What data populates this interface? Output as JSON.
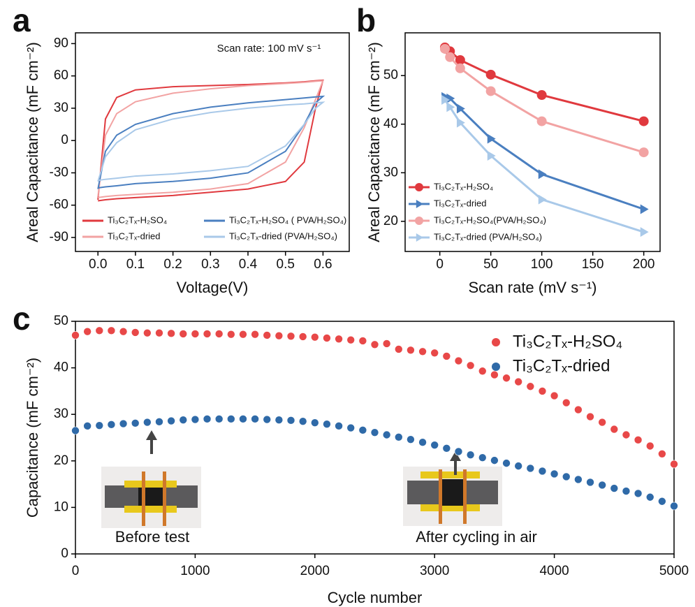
{
  "chart_data": [
    {
      "type": "line",
      "label": "a",
      "annotation": "Scan rate: 100 mV s⁻¹",
      "xlabel": "Voltage(V)",
      "ylabel": "Areal Capacitance (mF cm⁻²)",
      "x": [
        0,
        0.02,
        0.05,
        0.1,
        0.2,
        0.3,
        0.4,
        0.5,
        0.55,
        0.58,
        0.6,
        0.58,
        0.55,
        0.5,
        0.4,
        0.3,
        0.2,
        0.1,
        0.05,
        0.02,
        0
      ],
      "series": [
        {
          "name": "Ti₃C₂Tₓ-H₂SO₄",
          "color": "#e0393e",
          "values": [
            -55,
            20,
            40,
            47,
            50,
            51,
            52,
            53.5,
            54.5,
            55.5,
            56,
            30,
            -20,
            -38,
            -45,
            -48,
            -51,
            -53,
            -54,
            -55,
            -56
          ]
        },
        {
          "name": "Ti₃C₂Tₓ-dried",
          "color": "#f2a3a3",
          "values": [
            -52,
            5,
            25,
            36,
            44,
            48,
            51,
            53,
            54,
            55,
            55.5,
            38,
            12,
            -20,
            -40,
            -45,
            -48,
            -50,
            -51,
            -52,
            -53
          ]
        },
        {
          "name": "Ti₃C₂Tₓ-H₂SO₄ ( PVA/H₂SO₄)",
          "color": "#4a7fc0",
          "values": [
            -45,
            -10,
            5,
            15,
            25,
            31,
            35,
            38,
            39.5,
            40.5,
            41,
            35,
            15,
            -10,
            -30,
            -35,
            -38,
            -40,
            -42,
            -43,
            -44
          ]
        },
        {
          "name": "Ti₃C₂Tₓ-dried (PVA/H₂SO₄)",
          "color": "#a9c9e9",
          "values": [
            -38,
            -15,
            -2,
            10,
            20,
            26,
            30,
            33,
            34,
            35,
            35.5,
            30,
            15,
            -5,
            -24,
            -28,
            -31,
            -33,
            -35,
            -36,
            -37
          ]
        }
      ],
      "xlim": [
        -0.06,
        0.67
      ],
      "xticks": [
        {
          "value": 0,
          "label": "0.0"
        },
        0.1,
        0.2,
        0.3,
        0.4,
        0.5,
        0.6
      ],
      "ylim": [
        -103,
        100
      ],
      "yticks": [
        -90,
        -60,
        -30,
        0,
        30,
        60,
        90
      ],
      "legend": "lower center",
      "legend_columns": 2
    },
    {
      "type": "line",
      "label": "b",
      "xlabel": "Scan rate (mV s⁻¹)",
      "ylabel": "Areal Capacitance (mF cm⁻²)",
      "x": [
        5,
        10,
        20,
        50,
        100,
        200
      ],
      "series": [
        {
          "name": "Ti₃C₂Tₓ-H₂SO₄",
          "color": "#e0393e",
          "marker": "circle",
          "values": [
            55.8,
            55,
            53.2,
            50.2,
            46,
            40.6
          ]
        },
        {
          "name": "Ti₃C₂Tₓ-dried",
          "color": "#4a7fc0",
          "marker": "triangle",
          "values": [
            45.6,
            45.3,
            43.2,
            37,
            29.7,
            22.5
          ]
        },
        {
          "name": "Ti₃C₂Tₓ-H₂SO₄(PVA/H₂SO₄)",
          "color": "#f2a3a3",
          "marker": "circle",
          "values": [
            55.5,
            53.8,
            51.5,
            46.8,
            40.6,
            34.2
          ]
        },
        {
          "name": "Ti₃C₂Tₓ-dried (PVA/H₂SO₄)",
          "color": "#a9c9e9",
          "marker": "triangle",
          "values": [
            45,
            43.5,
            40.3,
            33.5,
            24.5,
            17.8
          ]
        }
      ],
      "xlim": [
        -34,
        216
      ],
      "xticks": [
        0,
        50,
        100,
        150,
        200
      ],
      "ylim": [
        13.8,
        58.8
      ],
      "yticks": [
        20,
        30,
        40,
        50
      ],
      "legend": "lower left",
      "legend_columns": 1
    },
    {
      "type": "scatter",
      "label": "c",
      "annotations": [
        "Before test",
        "After cycling in air"
      ],
      "xlabel": "Cycle number",
      "ylabel": "Capacitance (mF cm⁻²)",
      "x": [
        0,
        100,
        200,
        300,
        400,
        500,
        600,
        700,
        800,
        900,
        1000,
        1100,
        1200,
        1300,
        1400,
        1500,
        1600,
        1700,
        1800,
        1900,
        2000,
        2100,
        2200,
        2300,
        2400,
        2500,
        2600,
        2700,
        2800,
        2900,
        3000,
        3100,
        3200,
        3300,
        3400,
        3500,
        3600,
        3700,
        3800,
        3900,
        4000,
        4100,
        4200,
        4300,
        4400,
        4500,
        4600,
        4700,
        4800,
        4900,
        5000
      ],
      "series": [
        {
          "name": "Ti₃C₂Tₓ-H₂SO₄",
          "color": "#e84848",
          "values": [
            47,
            47.8,
            48,
            48,
            47.8,
            47.6,
            47.5,
            47.5,
            47.4,
            47.3,
            47.3,
            47.3,
            47.3,
            47.2,
            47.2,
            47.2,
            47,
            46.9,
            46.8,
            46.7,
            46.6,
            46.4,
            46.2,
            46,
            45.8,
            45,
            45.2,
            44,
            43.8,
            43.5,
            43.2,
            42.5,
            41.5,
            40.5,
            39.3,
            38.5,
            37.8,
            37,
            36,
            35,
            34,
            32.5,
            31,
            29.5,
            28.3,
            26.8,
            25.6,
            24.5,
            23.2,
            21.5,
            19.3
          ]
        },
        {
          "name": "Ti₃C₂Tₓ-dried",
          "color": "#2f6aa8",
          "values": [
            26.5,
            27.5,
            27.6,
            27.8,
            28,
            28.1,
            28.3,
            28.4,
            28.6,
            28.8,
            28.9,
            29,
            29,
            29,
            29,
            29,
            28.9,
            28.8,
            28.7,
            28.5,
            28.2,
            27.9,
            27.5,
            27.1,
            26.6,
            26.1,
            25.6,
            25.1,
            24.6,
            24,
            23.4,
            22.7,
            22,
            21.3,
            20.7,
            20.1,
            19.5,
            18.9,
            18.4,
            17.8,
            17.2,
            16.6,
            16,
            15.4,
            14.8,
            14.1,
            13.5,
            13,
            12.2,
            11.3,
            10.3
          ]
        }
      ],
      "xlim": [
        0,
        5000
      ],
      "xticks": [
        0,
        1000,
        2000,
        3000,
        4000,
        5000
      ],
      "ylim": [
        0,
        50
      ],
      "yticks": [
        0,
        10,
        20,
        30,
        40,
        50
      ],
      "legend": "upper right",
      "legend_columns": 1
    }
  ]
}
